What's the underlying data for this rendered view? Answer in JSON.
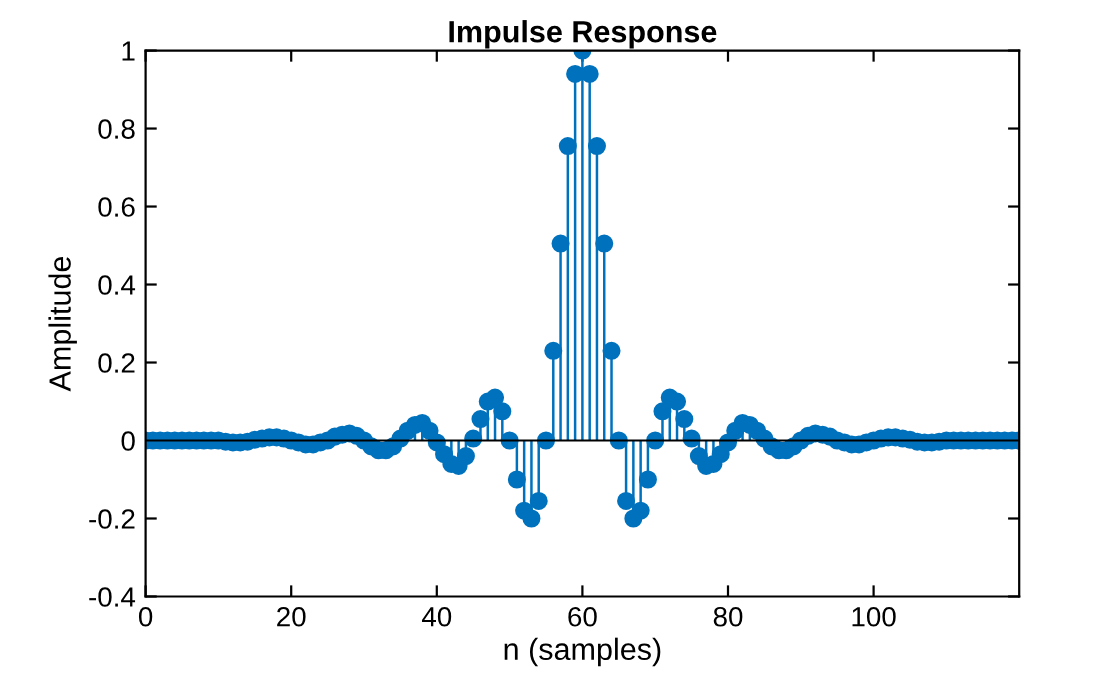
{
  "chart_data": {
    "type": "lollipop",
    "title": "Impulse Response",
    "xlabel": "n (samples)",
    "ylabel": "Amplitude",
    "x": [
      0,
      1,
      2,
      3,
      4,
      5,
      6,
      7,
      8,
      9,
      10,
      11,
      12,
      13,
      14,
      15,
      16,
      17,
      18,
      19,
      20,
      21,
      22,
      23,
      24,
      25,
      26,
      27,
      28,
      29,
      30,
      31,
      32,
      33,
      34,
      35,
      36,
      37,
      38,
      39,
      40,
      41,
      42,
      43,
      44,
      45,
      46,
      47,
      48,
      49,
      50,
      51,
      52,
      53,
      54,
      55,
      56,
      57,
      58,
      59,
      60,
      61,
      62,
      63,
      64,
      65,
      66,
      67,
      68,
      69,
      70,
      71,
      72,
      73,
      74,
      75,
      76,
      77,
      78,
      79,
      80,
      81,
      82,
      83,
      84,
      85,
      86,
      87,
      88,
      89,
      90,
      91,
      92,
      93,
      94,
      95,
      96,
      97,
      98,
      99,
      100,
      101,
      102,
      103,
      104,
      105,
      106,
      107,
      108,
      109,
      110,
      111,
      112,
      113,
      114,
      115,
      116,
      117,
      118,
      119,
      120
    ],
    "values": [
      0,
      0,
      0,
      0,
      0,
      0,
      0,
      0,
      0,
      0,
      0,
      -0.003,
      -0.005,
      -0.005,
      -0.003,
      0.002,
      0.005,
      0.008,
      0.008,
      0.005,
      0,
      -0.005,
      -0.01,
      -0.01,
      -0.005,
      0,
      0.01,
      0.015,
      0.018,
      0.012,
      0,
      -0.015,
      -0.025,
      -0.025,
      -0.015,
      0.005,
      0.025,
      0.04,
      0.045,
      0.025,
      -0.005,
      -0.035,
      -0.06,
      -0.065,
      -0.04,
      0.005,
      0.055,
      0.1,
      0.11,
      0.075,
      0,
      -0.1,
      -0.18,
      -0.2,
      -0.155,
      0,
      0.23,
      0.505,
      0.755,
      0.94,
      1,
      0.94,
      0.755,
      0.505,
      0.23,
      0,
      -0.155,
      -0.2,
      -0.18,
      -0.1,
      0,
      0.075,
      0.11,
      0.1,
      0.055,
      0.005,
      -0.04,
      -0.065,
      -0.06,
      -0.035,
      -0.005,
      0.025,
      0.045,
      0.04,
      0.025,
      0.005,
      -0.015,
      -0.025,
      -0.025,
      -0.015,
      0,
      0.012,
      0.018,
      0.015,
      0.01,
      0,
      -0.005,
      -0.01,
      -0.01,
      -0.005,
      0,
      0.005,
      0.008,
      0.008,
      0.005,
      0.002,
      -0.003,
      -0.005,
      -0.005,
      -0.003,
      0,
      0,
      0,
      0,
      0,
      0,
      0,
      0,
      0,
      0,
      0
    ],
    "color": "#0072bd",
    "marker": "circle",
    "xlim": [
      0,
      120
    ],
    "xticks": [
      0,
      20,
      40,
      60,
      80,
      100
    ],
    "ylim": [
      -0.4,
      1
    ],
    "yticks": [
      -0.4,
      -0.2,
      0,
      0.2,
      0.4,
      0.6,
      0.8,
      1
    ],
    "grid": false
  }
}
